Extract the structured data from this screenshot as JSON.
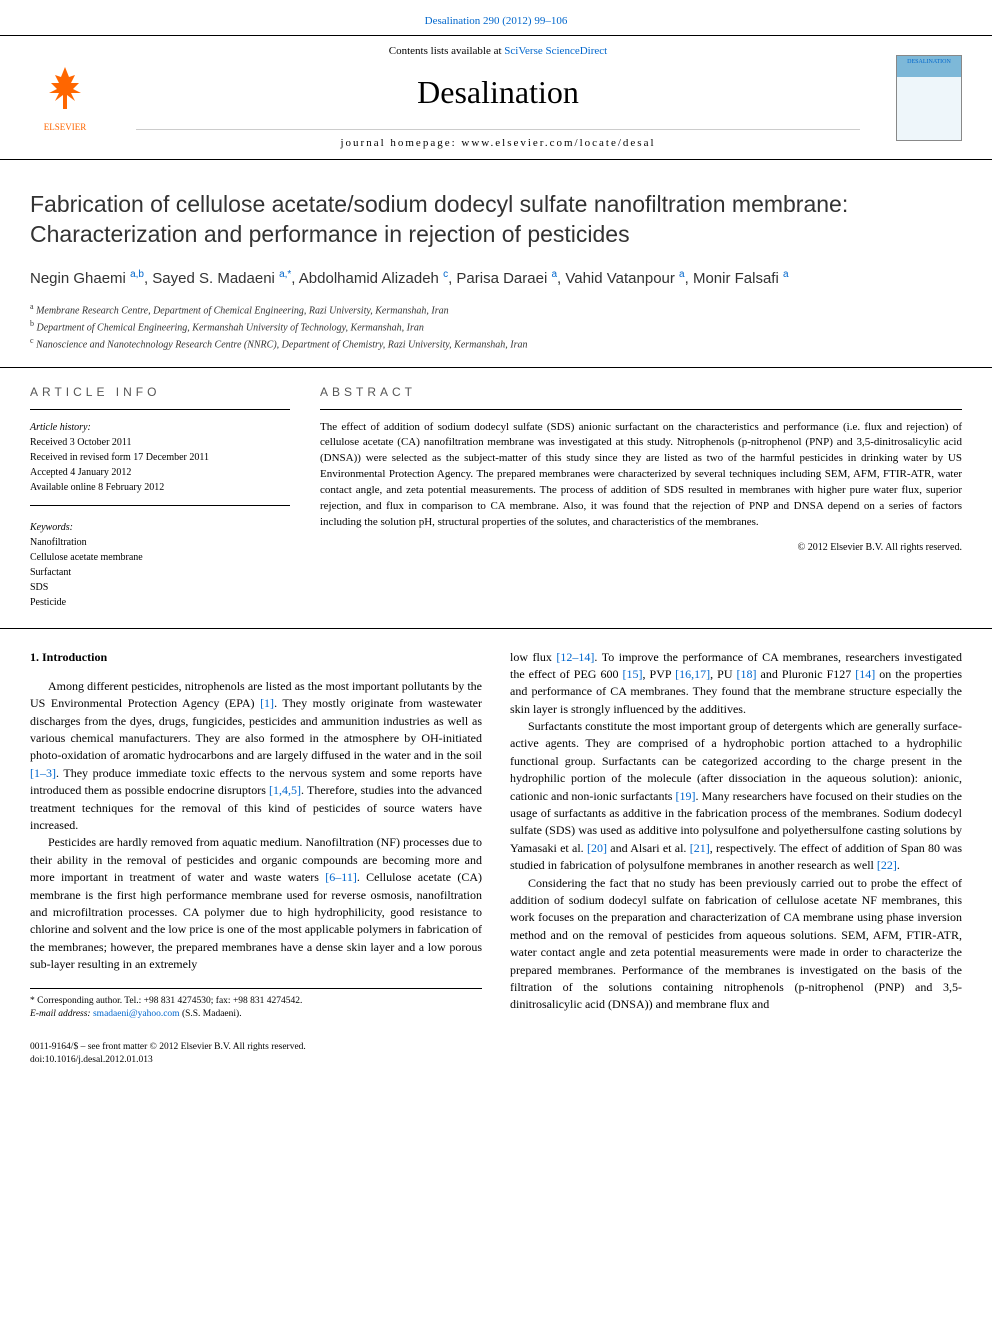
{
  "citation": "Desalination 290 (2012) 99–106",
  "header": {
    "publisher": "ELSEVIER",
    "contents_prefix": "Contents lists available at ",
    "contents_link": "SciVerse ScienceDirect",
    "journal": "Desalination",
    "homepage_prefix": "journal homepage: ",
    "homepage": "www.elsevier.com/locate/desal",
    "cover_label": "DESALINATION"
  },
  "title": "Fabrication of cellulose acetate/sodium dodecyl sulfate nanofiltration membrane: Characterization and performance in rejection of pesticides",
  "authors_html": "Negin Ghaemi <sup>a,b</sup>, Sayed S. Madaeni <sup>a,*</sup>, Abdolhamid Alizadeh <sup>c</sup>, Parisa Daraei <sup>a</sup>, Vahid Vatanpour <sup>a</sup>, Monir Falsafi <sup>a</sup>",
  "affiliations": {
    "a": "Membrane Research Centre, Department of Chemical Engineering, Razi University, Kermanshah, Iran",
    "b": "Department of Chemical Engineering, Kermanshah University of Technology, Kermanshah, Iran",
    "c": "Nanoscience and Nanotechnology Research Centre (NNRC), Department of Chemistry, Razi University, Kermanshah, Iran"
  },
  "info": {
    "heading": "ARTICLE INFO",
    "history_label": "Article history:",
    "history": [
      "Received 3 October 2011",
      "Received in revised form 17 December 2011",
      "Accepted 4 January 2012",
      "Available online 8 February 2012"
    ],
    "keywords_label": "Keywords:",
    "keywords": [
      "Nanofiltration",
      "Cellulose acetate membrane",
      "Surfactant",
      "SDS",
      "Pesticide"
    ]
  },
  "abstract": {
    "heading": "ABSTRACT",
    "text": "The effect of addition of sodium dodecyl sulfate (SDS) anionic surfactant on the characteristics and performance (i.e. flux and rejection) of cellulose acetate (CA) nanofiltration membrane was investigated at this study. Nitrophenols (p-nitrophenol (PNP) and 3,5-dinitrosalicylic acid (DNSA)) were selected as the subject-matter of this study since they are listed as two of the harmful pesticides in drinking water by US Environmental Protection Agency. The prepared membranes were characterized by several techniques including SEM, AFM, FTIR-ATR, water contact angle, and zeta potential measurements. The process of addition of SDS resulted in membranes with higher pure water flux, superior rejection, and flux in comparison to CA membrane. Also, it was found that the rejection of PNP and DNSA depend on a series of factors including the solution pH, structural properties of the solutes, and characteristics of the membranes.",
    "copyright": "© 2012 Elsevier B.V. All rights reserved."
  },
  "body": {
    "section_heading": "1. Introduction",
    "left": {
      "p1_pre": "Among different pesticides, nitrophenols are listed as the most important pollutants by the US Environmental Protection Agency (EPA) ",
      "p1_ref1": "[1]",
      "p1_mid": ". They mostly originate from wastewater discharges from the dyes, drugs, fungicides, pesticides and ammunition industries as well as various chemical manufacturers. They are also formed in the atmosphere by OH-initiated photo-oxidation of aromatic hydrocarbons and are largely diffused in the water and in the soil ",
      "p1_ref2": "[1–3]",
      "p1_mid2": ". They produce immediate toxic effects to the nervous system and some reports have introduced them as possible endocrine disruptors ",
      "p1_ref3": "[1,4,5]",
      "p1_post": ". Therefore, studies into the advanced treatment techniques for the removal of this kind of pesticides of source waters have increased.",
      "p2_pre": "Pesticides are hardly removed from aquatic medium. Nanofiltration (NF) processes due to their ability in the removal of pesticides and organic compounds are becoming more and more important in treatment of water and waste waters ",
      "p2_ref1": "[6–11]",
      "p2_post": ". Cellulose acetate (CA) membrane is the first high performance membrane used for reverse osmosis, nanofiltration and microfiltration processes. CA polymer due to high hydrophilicity, good resistance to chlorine and solvent and the low price is one of the most applicable polymers in fabrication of the membranes; however, the prepared membranes have a dense skin layer and a low porous sub-layer resulting in an extremely"
    },
    "right": {
      "p1_pre": "low flux ",
      "p1_ref1": "[12–14]",
      "p1_mid1": ". To improve the performance of CA membranes, researchers investigated the effect of PEG 600 ",
      "p1_ref2": "[15]",
      "p1_mid2": ", PVP ",
      "p1_ref3": "[16,17]",
      "p1_mid3": ", PU ",
      "p1_ref4": "[18]",
      "p1_mid4": " and Pluronic F127 ",
      "p1_ref5": "[14]",
      "p1_post": " on the properties and performance of CA membranes. They found that the membrane structure especially the skin layer is strongly influenced by the additives.",
      "p2_pre": "Surfactants constitute the most important group of detergents which are generally surface-active agents. They are comprised of a hydrophobic portion attached to a hydrophilic functional group. Surfactants can be categorized according to the charge present in the hydrophilic portion of the molecule (after dissociation in the aqueous solution): anionic, cationic and non-ionic surfactants ",
      "p2_ref1": "[19]",
      "p2_mid1": ". Many researchers have focused on their studies on the usage of surfactants as additive in the fabrication process of the membranes. Sodium dodecyl sulfate (SDS) was used as additive into polysulfone and polyethersulfone casting solutions by Yamasaki et al. ",
      "p2_ref2": "[20]",
      "p2_mid2": " and Alsari et al. ",
      "p2_ref3": "[21]",
      "p2_mid3": ", respectively. The effect of addition of Span 80 was studied in fabrication of polysulfone membranes in another research as well ",
      "p2_ref4": "[22]",
      "p2_post": ".",
      "p3": "Considering the fact that no study has been previously carried out to probe the effect of addition of sodium dodecyl sulfate on fabrication of cellulose acetate NF membranes, this work focuses on the preparation and characterization of CA membrane using phase inversion method and on the removal of pesticides from aqueous solutions. SEM, AFM, FTIR-ATR, water contact angle and zeta potential measurements were made in order to characterize the prepared membranes. Performance of the membranes is investigated on the basis of the filtration of the solutions containing nitrophenols (p-nitrophenol (PNP) and 3,5-dinitrosalicylic acid (DNSA)) and membrane flux and"
    }
  },
  "footnote": {
    "corresponding": "* Corresponding author. Tel.: +98 831 4274530; fax: +98 831 4274542.",
    "email_label": "E-mail address:",
    "email": "smadaeni@yahoo.com",
    "email_name": "(S.S. Madaeni)."
  },
  "footer": {
    "line1": "0011-9164/$ – see front matter © 2012 Elsevier B.V. All rights reserved.",
    "line2": "doi:10.1016/j.desal.2012.01.013"
  }
}
